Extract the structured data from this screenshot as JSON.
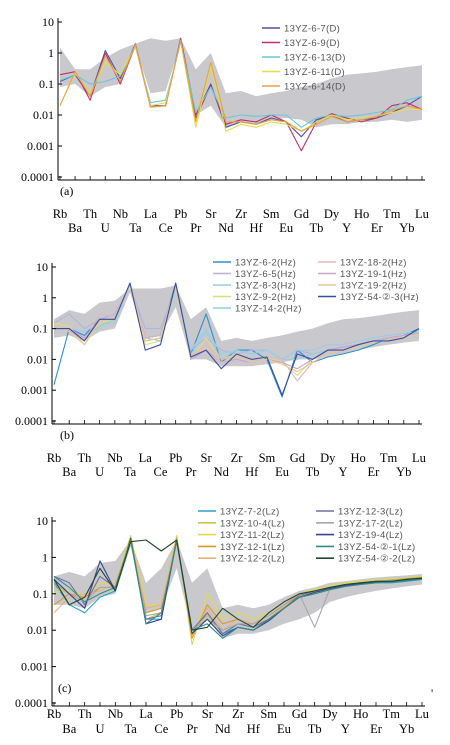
{
  "chart_data": [
    {
      "type": "line",
      "panel_label": "(a)",
      "y_scale": "log",
      "ylim": [
        0.0001,
        10
      ],
      "y_ticks": [
        "10",
        "1",
        "0.1",
        "0.01",
        "0.001",
        "0.0001"
      ],
      "categories": [
        "Rb",
        "Ba",
        "Th",
        "U",
        "Nb",
        "Ta",
        "La",
        "Ce",
        "Pb",
        "Pr",
        "Sr",
        "Nd",
        "Zr",
        "Hf",
        "Sm",
        "Eu",
        "Gd",
        "Tb",
        "Dy",
        "Y",
        "Ho",
        "Er",
        "Tm",
        "Yb",
        "Lu"
      ],
      "shade_range": {
        "upper": [
          1.5,
          0.3,
          0.3,
          0.7,
          1.3,
          2.0,
          3.0,
          2.5,
          3.0,
          0.3,
          1.0,
          0.05,
          0.06,
          0.04,
          0.05,
          0.06,
          0.08,
          0.1,
          0.15,
          0.2,
          0.22,
          0.25,
          0.3,
          0.35,
          0.4
        ],
        "lower": [
          0.08,
          0.1,
          0.04,
          0.08,
          0.1,
          1.5,
          0.05,
          0.06,
          2.0,
          0.01,
          0.02,
          0.004,
          0.006,
          0.005,
          0.007,
          0.008,
          0.007,
          0.004,
          0.005,
          0.005,
          0.006,
          0.006,
          0.007,
          0.006,
          0.007
        ]
      },
      "series": [
        {
          "name": "13YZ-6-7(D)",
          "color": "#4f4fa6",
          "values": [
            0.12,
            0.2,
            0.04,
            1.2,
            0.15,
            2.0,
            0.02,
            0.02,
            3.0,
            0.01,
            0.1,
            0.004,
            0.006,
            0.005,
            0.008,
            0.006,
            0.002,
            0.007,
            0.01,
            0.006,
            0.007,
            0.008,
            0.012,
            0.02,
            0.04
          ]
        },
        {
          "name": "13YZ-6-9(D)",
          "color": "#c0306a",
          "values": [
            0.2,
            0.25,
            0.03,
            1.0,
            0.1,
            1.8,
            0.018,
            0.02,
            2.7,
            0.008,
            0.09,
            0.005,
            0.007,
            0.006,
            0.01,
            0.006,
            0.0007,
            0.006,
            0.011,
            0.008,
            0.006,
            0.008,
            0.02,
            0.025,
            0.015
          ]
        },
        {
          "name": "13YZ-6-13(D)",
          "color": "#66c8dc",
          "values": [
            0.13,
            0.2,
            0.1,
            0.12,
            0.18,
            1.6,
            0.025,
            0.03,
            2.2,
            0.012,
            0.08,
            0.008,
            0.01,
            0.009,
            0.01,
            0.01,
            0.004,
            0.008,
            0.01,
            0.009,
            0.01,
            0.012,
            0.015,
            0.03,
            0.04
          ]
        },
        {
          "name": "13YZ-6-11(D)",
          "color": "#e4de4a",
          "values": [
            0.02,
            0.22,
            0.05,
            0.5,
            0.2,
            1.7,
            0.02,
            0.025,
            2.4,
            0.004,
            0.4,
            0.003,
            0.005,
            0.004,
            0.006,
            0.005,
            0.003,
            0.006,
            0.01,
            0.007,
            0.008,
            0.009,
            0.012,
            0.015,
            0.015
          ]
        },
        {
          "name": "13YZ-6-14(D)",
          "color": "#e9a243",
          "values": [
            0.02,
            0.25,
            0.04,
            0.8,
            0.12,
            1.9,
            0.018,
            0.02,
            2.6,
            0.006,
            0.5,
            0.006,
            0.006,
            0.005,
            0.007,
            0.006,
            0.003,
            0.005,
            0.009,
            0.006,
            0.007,
            0.009,
            0.014,
            0.02,
            0.015
          ]
        }
      ]
    },
    {
      "type": "line",
      "panel_label": "(b)",
      "y_scale": "log",
      "ylim": [
        0.0001,
        10
      ],
      "y_ticks": [
        "10",
        "1",
        "0.1",
        "0.01",
        "0.001",
        "0.0001"
      ],
      "categories": [
        "Rb",
        "Ba",
        "Th",
        "U",
        "Nb",
        "Ta",
        "La",
        "Ce",
        "Pb",
        "Pr",
        "Sr",
        "Nd",
        "Zr",
        "Hf",
        "Sm",
        "Eu",
        "Gd",
        "Tb",
        "Dy",
        "Y",
        "Ho",
        "Er",
        "Tm",
        "Yb",
        "Lu"
      ],
      "shade_range": {
        "upper": [
          0.2,
          0.4,
          0.3,
          0.7,
          0.8,
          2.0,
          2.0,
          2.0,
          2.5,
          0.2,
          0.5,
          0.04,
          0.05,
          0.04,
          0.05,
          0.06,
          0.08,
          0.1,
          0.15,
          0.2,
          0.22,
          0.25,
          0.3,
          0.35,
          0.4
        ],
        "lower": [
          0.05,
          0.06,
          0.04,
          0.08,
          0.1,
          1.5,
          0.05,
          0.06,
          0.5,
          0.01,
          0.01,
          0.006,
          0.006,
          0.006,
          0.007,
          0.008,
          0.01,
          0.01,
          0.012,
          0.015,
          0.02,
          0.025,
          0.03,
          0.035,
          0.04
        ]
      },
      "series": [
        {
          "name": "13YZ-6-2(Hz)",
          "color": "#2f8fcf",
          "values": [
            0.0015,
            0.1,
            0.06,
            0.2,
            0.2,
            3.0,
            0.05,
            0.06,
            3.0,
            0.015,
            0.3,
            0.008,
            0.02,
            0.02,
            0.01,
            0.0006,
            0.02,
            0.008,
            0.012,
            0.015,
            0.02,
            0.03,
            0.05,
            0.06,
            0.1
          ]
        },
        {
          "name": "13YZ-6-5(Hz)",
          "color": "#b3b3dd",
          "values": [
            0.15,
            0.3,
            0.1,
            0.2,
            0.3,
            2.5,
            0.1,
            0.1,
            2.0,
            0.02,
            0.05,
            0.02,
            0.015,
            0.02,
            0.02,
            0.01,
            0.02,
            0.015,
            0.02,
            0.025,
            0.03,
            0.04,
            0.05,
            0.06,
            0.07
          ]
        },
        {
          "name": "13YZ-8-3(Hz)",
          "color": "#9ccce8",
          "values": [
            0.1,
            0.1,
            0.08,
            0.15,
            0.15,
            2.8,
            0.04,
            0.05,
            2.4,
            0.02,
            0.1,
            0.015,
            0.02,
            0.015,
            0.02,
            0.01,
            0.02,
            0.02,
            0.03,
            0.03,
            0.04,
            0.05,
            0.06,
            0.07,
            0.08
          ]
        },
        {
          "name": "13YZ-9-2(Hz)",
          "color": "#e0dc78",
          "values": [
            0.15,
            0.12,
            0.03,
            0.15,
            0.2,
            2.6,
            0.03,
            0.04,
            2.1,
            0.01,
            0.05,
            0.01,
            0.015,
            0.01,
            0.012,
            0.008,
            0.003,
            0.01,
            0.02,
            0.02,
            0.03,
            0.04,
            0.05,
            0.06,
            0.07
          ]
        },
        {
          "name": "13YZ-14-2(Hz)",
          "color": "#8fd1e4",
          "values": [
            0.1,
            0.1,
            0.05,
            0.12,
            0.2,
            2.7,
            0.05,
            0.04,
            2.2,
            0.015,
            0.08,
            0.01,
            0.02,
            0.015,
            0.02,
            0.01,
            0.01,
            0.015,
            0.02,
            0.025,
            0.03,
            0.04,
            0.05,
            0.06,
            0.08
          ]
        },
        {
          "name": "13YZ-18-2(Hz)",
          "color": "#e2b7bd",
          "values": [
            0.12,
            0.09,
            0.04,
            0.3,
            0.25,
            2.9,
            0.05,
            0.06,
            2.6,
            0.012,
            0.03,
            0.01,
            0.012,
            0.01,
            0.012,
            0.01,
            0.002,
            0.008,
            0.015,
            0.02,
            0.03,
            0.04,
            0.05,
            0.06,
            0.07
          ]
        },
        {
          "name": "13YZ-19-1(Hz)",
          "color": "#c8a6ce",
          "values": [
            0.1,
            0.1,
            0.05,
            0.2,
            0.2,
            3.0,
            0.04,
            0.05,
            2.5,
            0.01,
            0.02,
            0.008,
            0.01,
            0.008,
            0.01,
            0.008,
            0.005,
            0.01,
            0.02,
            0.025,
            0.03,
            0.04,
            0.05,
            0.06,
            0.07
          ]
        },
        {
          "name": "13YZ-19-2(Hz)",
          "color": "#e6c89a",
          "values": [
            0.13,
            0.08,
            0.03,
            0.18,
            0.22,
            3.0,
            0.04,
            0.05,
            2.4,
            0.012,
            0.025,
            0.008,
            0.012,
            0.008,
            0.01,
            0.007,
            0.004,
            0.008,
            0.015,
            0.02,
            0.025,
            0.035,
            0.045,
            0.055,
            0.065
          ]
        },
        {
          "name": "13YZ-54-②-3(Hz)",
          "color": "#3a4e9e",
          "values": [
            0.1,
            0.1,
            0.04,
            0.2,
            0.2,
            3.0,
            0.02,
            0.03,
            3.0,
            0.012,
            0.02,
            0.005,
            0.015,
            0.01,
            0.012,
            0.0007,
            0.015,
            0.01,
            0.02,
            0.02,
            0.03,
            0.04,
            0.04,
            0.05,
            0.1
          ]
        }
      ]
    },
    {
      "type": "line",
      "panel_label": "(c)",
      "y_scale": "log",
      "ylim": [
        0.0001,
        10
      ],
      "y_ticks": [
        "10",
        "1",
        "0.1",
        "0.01",
        "0.001",
        "0.0001"
      ],
      "categories": [
        "Rb",
        "Ba",
        "Th",
        "U",
        "Nb",
        "Ta",
        "La",
        "Ce",
        "Pb",
        "Pr",
        "Sr",
        "Nd",
        "Zr",
        "Hf",
        "Sm",
        "Eu",
        "Gd",
        "Tb",
        "Dy",
        "Y",
        "Ho",
        "Er",
        "Tm",
        "Yb",
        "Lu"
      ],
      "shade_range": {
        "upper": [
          0.3,
          0.4,
          0.3,
          0.7,
          0.8,
          3.0,
          0.2,
          0.5,
          3.0,
          0.2,
          0.5,
          0.04,
          0.05,
          0.04,
          0.05,
          0.08,
          0.12,
          0.15,
          0.2,
          0.22,
          0.25,
          0.28,
          0.3,
          0.32,
          0.35
        ],
        "lower": [
          0.05,
          0.05,
          0.04,
          0.08,
          0.1,
          2.0,
          0.03,
          0.04,
          0.5,
          0.01,
          0.02,
          0.006,
          0.008,
          0.008,
          0.01,
          0.015,
          0.02,
          0.03,
          0.06,
          0.08,
          0.1,
          0.12,
          0.14,
          0.16,
          0.18
        ]
      },
      "series": [
        {
          "name": "13YZ-7-2(Lz)",
          "color": "#2d9fd3",
          "values": [
            0.2,
            0.05,
            0.03,
            0.08,
            0.12,
            3.5,
            0.02,
            0.02,
            3.0,
            0.008,
            0.03,
            0.008,
            0.012,
            0.01,
            0.02,
            0.04,
            0.08,
            0.1,
            0.15,
            0.17,
            0.18,
            0.2,
            0.2,
            0.22,
            0.25
          ]
        },
        {
          "name": "13YZ-10-4(Lz)",
          "color": "#c9c456",
          "values": [
            0.15,
            0.1,
            0.06,
            0.1,
            0.15,
            3.2,
            0.02,
            0.03,
            2.8,
            0.01,
            0.025,
            0.01,
            0.015,
            0.012,
            0.02,
            0.05,
            0.1,
            0.12,
            0.15,
            0.17,
            0.2,
            0.22,
            0.22,
            0.24,
            0.26
          ]
        },
        {
          "name": "13YZ-11-2(Lz)",
          "color": "#e2d94e",
          "values": [
            0.1,
            0.15,
            0.08,
            0.2,
            0.2,
            4.0,
            0.05,
            0.05,
            4.0,
            0.004,
            0.1,
            0.02,
            0.03,
            0.02,
            0.03,
            0.06,
            0.1,
            0.13,
            0.17,
            0.2,
            0.22,
            0.24,
            0.25,
            0.27,
            0.3
          ]
        },
        {
          "name": "13YZ-12-1(Lz)",
          "color": "#e0962e",
          "values": [
            0.05,
            0.1,
            0.08,
            0.15,
            0.15,
            3.5,
            0.03,
            0.04,
            3.5,
            0.006,
            0.05,
            0.015,
            0.02,
            0.015,
            0.025,
            0.05,
            0.09,
            0.12,
            0.15,
            0.18,
            0.2,
            0.22,
            0.24,
            0.26,
            0.28
          ]
        },
        {
          "name": "13YZ-12-2(Lz)",
          "color": "#eeb07b",
          "values": [
            0.03,
            0.08,
            0.1,
            0.12,
            0.2,
            3.0,
            0.04,
            0.05,
            3.2,
            0.007,
            0.04,
            0.01,
            0.02,
            0.015,
            0.02,
            0.045,
            0.08,
            0.1,
            0.13,
            0.16,
            0.18,
            0.2,
            0.22,
            0.24,
            0.26
          ]
        },
        {
          "name": "13YZ-12-3(Lz)",
          "color": "#6f70a8",
          "values": [
            0.3,
            0.2,
            0.05,
            0.3,
            0.15,
            3.0,
            0.02,
            0.025,
            3.0,
            0.01,
            0.03,
            0.008,
            0.015,
            0.012,
            0.02,
            0.04,
            0.09,
            0.12,
            0.15,
            0.18,
            0.2,
            0.22,
            0.22,
            0.25,
            0.27
          ]
        },
        {
          "name": "13YZ-17-2(Lz)",
          "color": "#a8a8a8",
          "values": [
            0.2,
            0.1,
            0.06,
            0.15,
            0.15,
            2.8,
            0.025,
            0.03,
            2.7,
            0.01,
            0.02,
            0.01,
            0.015,
            0.015,
            0.025,
            0.05,
            0.1,
            0.012,
            0.14,
            0.17,
            0.2,
            0.22,
            0.23,
            0.25,
            0.27
          ]
        },
        {
          "name": "13YZ-19-4(Lz)",
          "color": "#354593",
          "values": [
            0.25,
            0.1,
            0.04,
            0.8,
            0.12,
            3.3,
            0.015,
            0.02,
            3.0,
            0.008,
            0.02,
            0.007,
            0.012,
            0.01,
            0.018,
            0.04,
            0.08,
            0.11,
            0.14,
            0.17,
            0.19,
            0.21,
            0.22,
            0.24,
            0.26
          ]
        },
        {
          "name": "13YZ-54-②-1(Lz)",
          "color": "#2f8f86",
          "values": [
            0.3,
            0.15,
            0.06,
            0.1,
            0.15,
            3.0,
            0.015,
            0.03,
            2.8,
            0.01,
            0.015,
            0.006,
            0.012,
            0.01,
            0.02,
            0.04,
            0.08,
            0.1,
            0.13,
            0.16,
            0.18,
            0.2,
            0.21,
            0.23,
            0.25
          ]
        },
        {
          "name": "13YZ-54-②-2(Lz)",
          "color": "#22472b",
          "values": [
            0.25,
            0.05,
            0.08,
            0.5,
            0.12,
            2.7,
            3.0,
            1.5,
            3.0,
            0.01,
            0.012,
            0.04,
            0.02,
            0.012,
            0.03,
            0.06,
            0.1,
            0.12,
            0.15,
            0.18,
            0.2,
            0.22,
            0.22,
            0.25,
            0.27
          ]
        }
      ]
    }
  ]
}
